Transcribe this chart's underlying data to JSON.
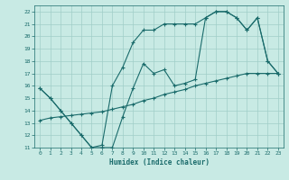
{
  "title": "",
  "xlabel": "Humidex (Indice chaleur)",
  "xlim": [
    -0.5,
    23.5
  ],
  "ylim": [
    11,
    22.5
  ],
  "xticks": [
    0,
    1,
    2,
    3,
    4,
    5,
    6,
    7,
    8,
    9,
    10,
    11,
    12,
    13,
    14,
    15,
    16,
    17,
    18,
    19,
    20,
    21,
    22,
    23
  ],
  "yticks": [
    11,
    12,
    13,
    14,
    15,
    16,
    17,
    18,
    19,
    20,
    21,
    22
  ],
  "bg_color": "#c8eae4",
  "grid_color": "#a0cec8",
  "line_color": "#1a6b6b",
  "line1_x": [
    0,
    1,
    2,
    3,
    4,
    5,
    6,
    7,
    8,
    9,
    10,
    11,
    12,
    13,
    14,
    15,
    16,
    17,
    18,
    19,
    20,
    21,
    22,
    23
  ],
  "line1_y": [
    15.8,
    15.0,
    14.0,
    13.0,
    12.0,
    11.0,
    11.0,
    11.0,
    13.5,
    15.8,
    17.8,
    17.0,
    17.3,
    16.0,
    16.2,
    16.5,
    21.5,
    22.0,
    22.0,
    21.5,
    20.5,
    21.5,
    18.0,
    17.0
  ],
  "line2_x": [
    0,
    1,
    2,
    3,
    4,
    5,
    6,
    7,
    8,
    9,
    10,
    11,
    12,
    13,
    14,
    15,
    16,
    17,
    18,
    19,
    20,
    21,
    22,
    23
  ],
  "line2_y": [
    15.8,
    15.0,
    14.0,
    13.0,
    12.0,
    11.0,
    11.2,
    16.0,
    17.5,
    19.5,
    20.5,
    20.5,
    21.0,
    21.0,
    21.0,
    21.0,
    21.5,
    22.0,
    22.0,
    21.5,
    20.5,
    21.5,
    18.0,
    17.0
  ],
  "line3_x": [
    0,
    1,
    2,
    3,
    4,
    5,
    6,
    7,
    8,
    9,
    10,
    11,
    12,
    13,
    14,
    15,
    16,
    17,
    18,
    19,
    20,
    21,
    22,
    23
  ],
  "line3_y": [
    13.2,
    13.4,
    13.5,
    13.6,
    13.7,
    13.8,
    13.9,
    14.1,
    14.3,
    14.5,
    14.8,
    15.0,
    15.3,
    15.5,
    15.7,
    16.0,
    16.2,
    16.4,
    16.6,
    16.8,
    17.0,
    17.0,
    17.0,
    17.0
  ]
}
